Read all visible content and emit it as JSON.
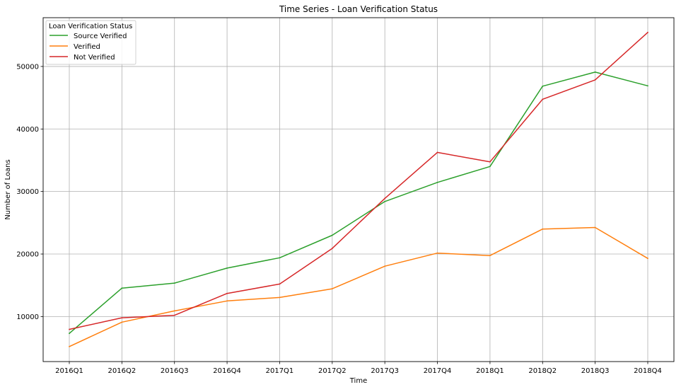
{
  "chart_data": {
    "type": "line",
    "title": "Time Series - Loan Verification Status",
    "xlabel": "Time",
    "ylabel": "Number of Loans",
    "categories": [
      "2016Q1",
      "2016Q2",
      "2016Q3",
      "2016Q4",
      "2017Q1",
      "2017Q2",
      "2017Q3",
      "2017Q4",
      "2018Q1",
      "2018Q2",
      "2018Q3",
      "2018Q4"
    ],
    "ylim": [
      2800,
      57800
    ],
    "yticks": [
      10000,
      20000,
      30000,
      40000,
      50000
    ],
    "ytick_labels": [
      "10000",
      "20000",
      "30000",
      "40000",
      "50000"
    ],
    "grid": true,
    "legend": {
      "title": "Loan Verification Status",
      "placement": "top-left"
    },
    "series": [
      {
        "name": "Source Verified",
        "color": "#2ca02c",
        "values": [
          7300,
          14550,
          15350,
          17750,
          19400,
          23000,
          28400,
          31450,
          34000,
          46850,
          49100,
          46900
        ]
      },
      {
        "name": "Verified",
        "color": "#ff7f0e",
        "values": [
          5200,
          9100,
          10900,
          12500,
          13050,
          14450,
          18050,
          20150,
          19750,
          24000,
          24250,
          19300
        ]
      },
      {
        "name": "Not Verified",
        "color": "#d62728",
        "values": [
          7950,
          9800,
          10200,
          13700,
          15200,
          20900,
          28900,
          36250,
          34750,
          44750,
          47850,
          55450
        ]
      }
    ]
  }
}
